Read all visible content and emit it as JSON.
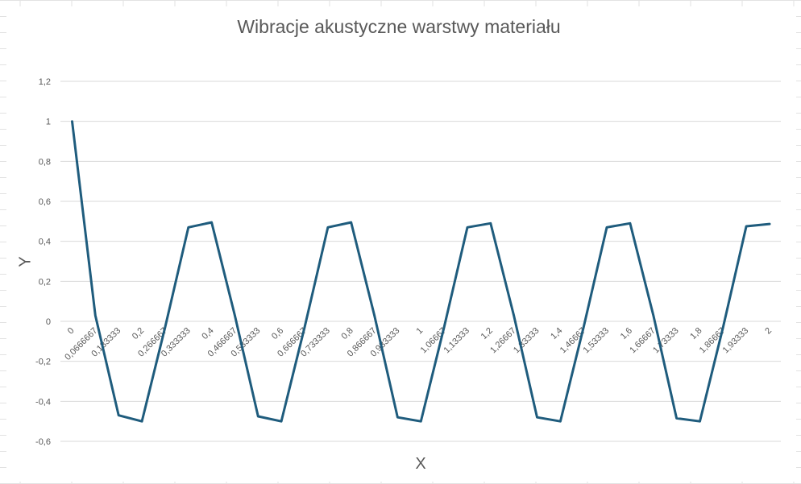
{
  "chart_data": {
    "type": "line",
    "title": "Wibracje akustyczne warstwy materiału",
    "xlabel": "X",
    "ylabel": "Y",
    "ylim": [
      -0.6,
      1.2
    ],
    "y_ticks": [
      "1,2",
      "1",
      "0,8",
      "0,6",
      "0,4",
      "0,2",
      "0",
      "-0,2",
      "-0,4",
      "-0,6"
    ],
    "y_tick_values": [
      1.2,
      1,
      0.8,
      0.6,
      0.4,
      0.2,
      0,
      -0.2,
      -0.4,
      -0.6
    ],
    "categories": [
      "0",
      "0,0666667",
      "0,133333",
      "0,2",
      "0,266667",
      "0,333333",
      "0,4",
      "0,466667",
      "0,533333",
      "0,6",
      "0,666667",
      "0,733333",
      "0,8",
      "0,866667",
      "0,933333",
      "1",
      "1,06667",
      "1,13333",
      "1,2",
      "1,26667",
      "1,33333",
      "1,4",
      "1,46667",
      "1,53333",
      "1,6",
      "1,66667",
      "1,73333",
      "1,8",
      "1,86667",
      "1,93333",
      "2"
    ],
    "series": [
      {
        "color": "#1F5C7D",
        "values": [
          1,
          0.03,
          -0.47,
          -0.5,
          -0.03,
          0.47,
          0.495,
          0.03,
          -0.475,
          -0.5,
          -0.03,
          0.47,
          0.495,
          0.03,
          -0.48,
          -0.5,
          -0.03,
          0.47,
          0.49,
          0.03,
          -0.48,
          -0.5,
          -0.03,
          0.47,
          0.49,
          0.03,
          -0.485,
          -0.5,
          -0.03,
          0.475,
          0.487
        ]
      }
    ],
    "grid": true,
    "legend": "none"
  },
  "colors": {
    "gridline": "#D9D9D9",
    "sheet_grid": "#E2E2E2"
  }
}
